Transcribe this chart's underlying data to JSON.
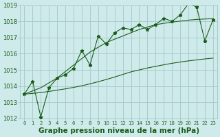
{
  "xlabel": "Graphe pression niveau de la mer (hPa)",
  "bg_color": "#ceeaea",
  "grid_color": "#a8cccc",
  "line_color": "#1a5c1a",
  "x": [
    0,
    1,
    2,
    3,
    4,
    5,
    6,
    7,
    8,
    9,
    10,
    11,
    12,
    13,
    14,
    15,
    16,
    17,
    18,
    19,
    20,
    21,
    22,
    23
  ],
  "y_main": [
    1013.5,
    1014.3,
    1012.1,
    1013.9,
    1014.5,
    1014.7,
    1015.1,
    1016.2,
    1015.3,
    1017.1,
    1016.6,
    1017.3,
    1017.6,
    1017.5,
    1017.8,
    1017.5,
    1017.8,
    1018.2,
    1018.0,
    1018.4,
    1019.1,
    1018.9,
    1016.8,
    1018.1
  ],
  "y_lower": [
    1013.5,
    1013.55,
    1013.6,
    1013.67,
    1013.75,
    1013.83,
    1013.92,
    1014.02,
    1014.14,
    1014.27,
    1014.41,
    1014.56,
    1014.72,
    1014.88,
    1015.0,
    1015.12,
    1015.22,
    1015.32,
    1015.41,
    1015.49,
    1015.56,
    1015.62,
    1015.68,
    1015.73
  ],
  "y_upper": [
    1013.5,
    1013.7,
    1013.9,
    1014.2,
    1014.5,
    1014.9,
    1015.3,
    1015.7,
    1016.1,
    1016.4,
    1016.7,
    1016.9,
    1017.1,
    1017.3,
    1017.5,
    1017.65,
    1017.8,
    1017.88,
    1017.96,
    1018.02,
    1018.08,
    1018.12,
    1018.15,
    1018.17
  ],
  "ylim": [
    1012,
    1019
  ],
  "xlim": [
    -0.5,
    23.5
  ],
  "yticks": [
    1012,
    1013,
    1014,
    1015,
    1016,
    1017,
    1018,
    1019
  ],
  "xticks": [
    0,
    1,
    2,
    3,
    4,
    5,
    6,
    7,
    8,
    9,
    10,
    11,
    12,
    13,
    14,
    15,
    16,
    17,
    18,
    19,
    20,
    21,
    22,
    23
  ],
  "xlabel_fontsize": 7.5,
  "ytick_fontsize": 6,
  "xtick_fontsize": 5
}
